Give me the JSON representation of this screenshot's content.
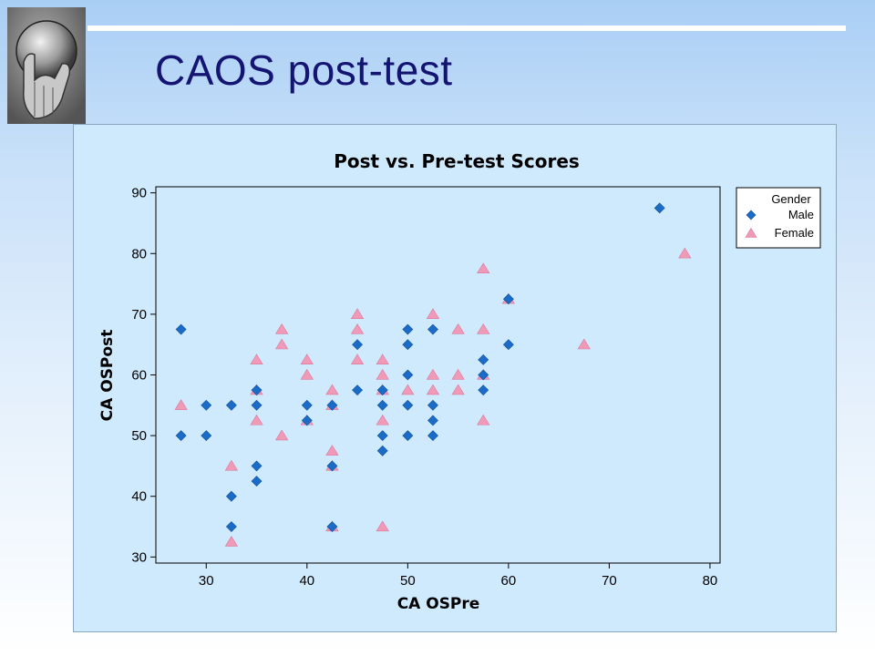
{
  "slide": {
    "title": "CAOS post-test"
  },
  "colors": {
    "male": "#1b6cc8",
    "female": "#f19ab7",
    "panel_bg": "#cfe9fd",
    "title_color": "#141473"
  },
  "chart_data": {
    "type": "scatter",
    "title": "Post vs. Pre-test Scores",
    "xlabel": "CA OSPre",
    "ylabel": "CA OSPost",
    "xlim": [
      25,
      81
    ],
    "ylim": [
      29,
      91
    ],
    "xticks": [
      30,
      40,
      50,
      60,
      70,
      80
    ],
    "yticks": [
      30,
      40,
      50,
      60,
      70,
      80,
      90
    ],
    "grid": false,
    "legend": {
      "title": "Gender",
      "placement": "right",
      "entries": [
        "Male",
        "Female"
      ]
    },
    "series": [
      {
        "name": "Male",
        "marker": "diamond",
        "points": [
          [
            27.5,
            67.5
          ],
          [
            27.5,
            50
          ],
          [
            30,
            55
          ],
          [
            30,
            50
          ],
          [
            32.5,
            55
          ],
          [
            32.5,
            40
          ],
          [
            32.5,
            35
          ],
          [
            35,
            57.5
          ],
          [
            35,
            55
          ],
          [
            35,
            45
          ],
          [
            35,
            42.5
          ],
          [
            40,
            55
          ],
          [
            40,
            52.5
          ],
          [
            42.5,
            55
          ],
          [
            42.5,
            45
          ],
          [
            42.5,
            35
          ],
          [
            45,
            65
          ],
          [
            45,
            57.5
          ],
          [
            47.5,
            57.5
          ],
          [
            47.5,
            55
          ],
          [
            47.5,
            50
          ],
          [
            47.5,
            47.5
          ],
          [
            50,
            67.5
          ],
          [
            50,
            65
          ],
          [
            50,
            60
          ],
          [
            50,
            55
          ],
          [
            50,
            50
          ],
          [
            52.5,
            67.5
          ],
          [
            52.5,
            55
          ],
          [
            52.5,
            52.5
          ],
          [
            52.5,
            50
          ],
          [
            57.5,
            62.5
          ],
          [
            57.5,
            60
          ],
          [
            57.5,
            57.5
          ],
          [
            60,
            72.5
          ],
          [
            60,
            65
          ],
          [
            75,
            87.5
          ]
        ]
      },
      {
        "name": "Female",
        "marker": "triangle",
        "points": [
          [
            27.5,
            55
          ],
          [
            32.5,
            45
          ],
          [
            32.5,
            32.5
          ],
          [
            35,
            62.5
          ],
          [
            35,
            57.5
          ],
          [
            35,
            52.5
          ],
          [
            37.5,
            67.5
          ],
          [
            37.5,
            65
          ],
          [
            37.5,
            50
          ],
          [
            40,
            62.5
          ],
          [
            40,
            60
          ],
          [
            40,
            52.5
          ],
          [
            42.5,
            57.5
          ],
          [
            42.5,
            55
          ],
          [
            42.5,
            47.5
          ],
          [
            42.5,
            45
          ],
          [
            42.5,
            35
          ],
          [
            45,
            70
          ],
          [
            45,
            67.5
          ],
          [
            45,
            62.5
          ],
          [
            47.5,
            62.5
          ],
          [
            47.5,
            60
          ],
          [
            47.5,
            57.5
          ],
          [
            47.5,
            52.5
          ],
          [
            47.5,
            35
          ],
          [
            50,
            57.5
          ],
          [
            52.5,
            70
          ],
          [
            52.5,
            60
          ],
          [
            52.5,
            57.5
          ],
          [
            55,
            67.5
          ],
          [
            55,
            60
          ],
          [
            55,
            57.5
          ],
          [
            57.5,
            77.5
          ],
          [
            57.5,
            67.5
          ],
          [
            57.5,
            60
          ],
          [
            57.5,
            52.5
          ],
          [
            60,
            72.5
          ],
          [
            67.5,
            65
          ],
          [
            77.5,
            80
          ]
        ]
      }
    ]
  }
}
